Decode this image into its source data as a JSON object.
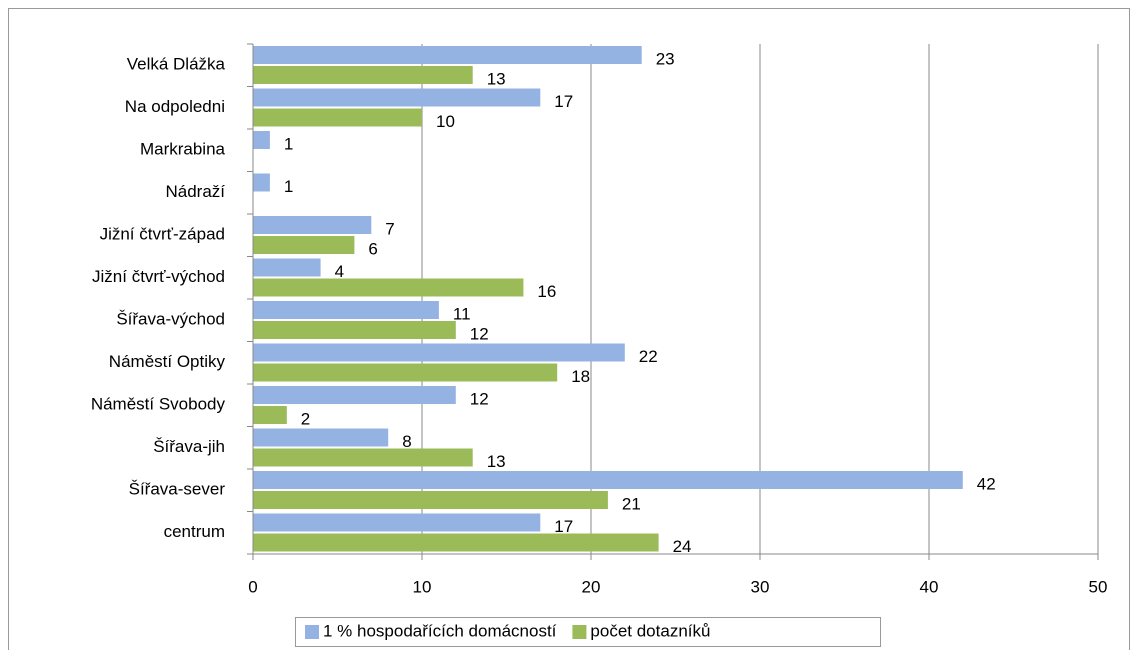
{
  "chart_data": {
    "type": "barh",
    "categories": [
      "Velká Dlážka",
      "Na odpoledni",
      "Markrabina",
      "Nádraží",
      "Jižní čtvrť-západ",
      "Jižní čtvrť-východ",
      "Šířava-východ",
      "Náměstí Optiky",
      "Náměstí Svobody",
      "Šířava-jih",
      "Šířava-sever",
      "centrum"
    ],
    "series": [
      {
        "name": "1 % hospodařících domácností",
        "color": "#95b3e2",
        "values": [
          23,
          17,
          1,
          1,
          7,
          4,
          11,
          22,
          12,
          8,
          42,
          17
        ]
      },
      {
        "name": "počet dotazníků",
        "color": "#9bbb59",
        "values": [
          13,
          10,
          null,
          null,
          6,
          16,
          12,
          18,
          2,
          13,
          21,
          24
        ]
      }
    ],
    "xlim": [
      0,
      50
    ],
    "xticks": [
      0,
      10,
      20,
      30,
      40,
      50
    ],
    "grid": true,
    "legend": "bottom"
  }
}
